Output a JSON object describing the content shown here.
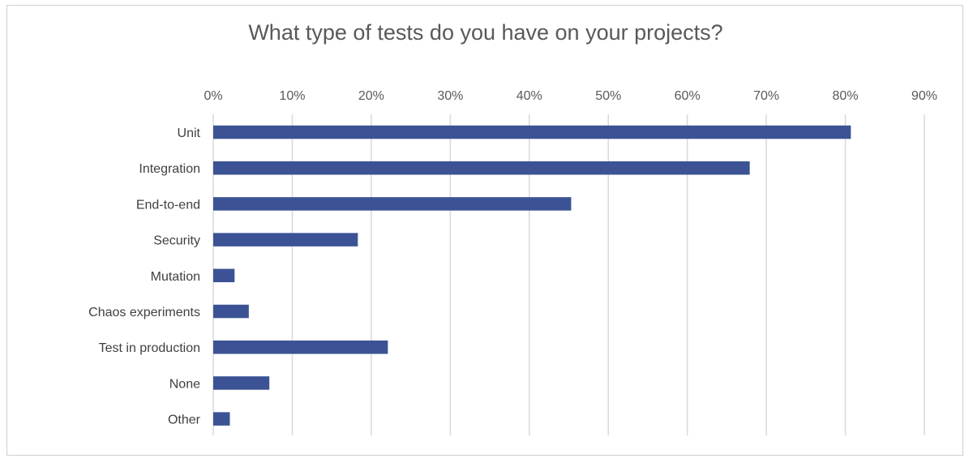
{
  "chart_data": {
    "type": "bar",
    "orientation": "horizontal",
    "title": "What type of tests do you have on your projects?",
    "xlabel": "",
    "ylabel": "",
    "xlim": [
      0,
      90
    ],
    "x_ticks": [
      "0%",
      "10%",
      "20%",
      "30%",
      "40%",
      "50%",
      "60%",
      "70%",
      "80%",
      "90%"
    ],
    "x_tick_values": [
      0,
      10,
      20,
      30,
      40,
      50,
      60,
      70,
      80,
      90
    ],
    "axis_position": "top",
    "grid": true,
    "legend": "none",
    "bar_color": "#3b5394",
    "categories": [
      "Unit",
      "Integration",
      "End-to-end",
      "Security",
      "Mutation",
      "Chaos experiments",
      "Test in production",
      "None",
      "Other"
    ],
    "values": [
      80.7,
      67.9,
      45.3,
      18.3,
      2.7,
      4.5,
      22.1,
      7.1,
      2.1
    ]
  }
}
